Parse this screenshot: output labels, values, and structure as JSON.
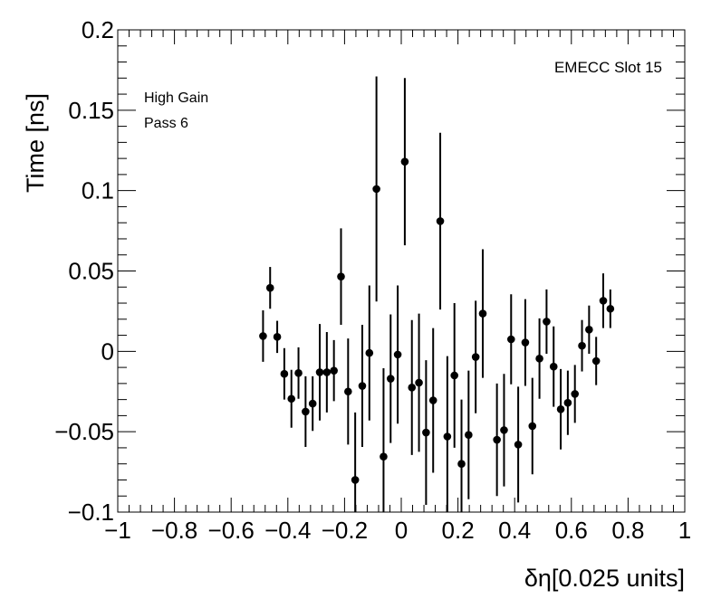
{
  "chart_data": {
    "type": "scatter",
    "title": "",
    "xlabel": "δη[0.025 units]",
    "ylabel": "Time [ns]",
    "xlim": [
      -1,
      1
    ],
    "ylim": [
      -0.1,
      0.2
    ],
    "x_ticks": [
      "−1",
      "−0.8",
      "−0.6",
      "−0.4",
      "−0.2",
      "0",
      "0.2",
      "0.4",
      "0.6",
      "0.8",
      "1"
    ],
    "y_ticks": [
      "−0.1",
      "−0.05",
      "0",
      "0.05",
      "0.1",
      "0.15",
      "0.2"
    ],
    "annotations": {
      "top_right": "EMECC Slot 15",
      "line1": "High Gain",
      "line2": "Pass 6"
    },
    "legend": "none",
    "grid": false,
    "marker_color": "#000000",
    "series": [
      {
        "points": [
          {
            "x": -0.4875,
            "y": 0.0095,
            "err": 0.016
          },
          {
            "x": -0.4625,
            "y": 0.0395,
            "err": 0.013
          },
          {
            "x": -0.4375,
            "y": 0.009,
            "err": 0.01
          },
          {
            "x": -0.4125,
            "y": -0.014,
            "err": 0.016
          },
          {
            "x": -0.3875,
            "y": -0.0295,
            "err": 0.018
          },
          {
            "x": -0.3625,
            "y": -0.0135,
            "err": 0.016
          },
          {
            "x": -0.3375,
            "y": -0.0375,
            "err": 0.022
          },
          {
            "x": -0.3125,
            "y": -0.0325,
            "err": 0.017
          },
          {
            "x": -0.2875,
            "y": -0.013,
            "err": 0.03
          },
          {
            "x": -0.2625,
            "y": -0.013,
            "err": 0.025
          },
          {
            "x": -0.2375,
            "y": -0.012,
            "err": 0.019
          },
          {
            "x": -0.2125,
            "y": 0.0465,
            "err": 0.03
          },
          {
            "x": -0.1875,
            "y": -0.025,
            "err": 0.033
          },
          {
            "x": -0.1625,
            "y": -0.08,
            "err": 0.042
          },
          {
            "x": -0.1375,
            "y": -0.0215,
            "err": 0.038
          },
          {
            "x": -0.1125,
            "y": -0.001,
            "err": 0.042
          },
          {
            "x": -0.0875,
            "y": 0.101,
            "err": 0.07
          },
          {
            "x": -0.0625,
            "y": -0.0655,
            "err": 0.055
          },
          {
            "x": -0.0375,
            "y": -0.017,
            "err": 0.04
          },
          {
            "x": -0.0125,
            "y": -0.002,
            "err": 0.043
          },
          {
            "x": 0.0125,
            "y": 0.118,
            "err": 0.052
          },
          {
            "x": 0.0375,
            "y": -0.0225,
            "err": 0.042
          },
          {
            "x": 0.0625,
            "y": -0.0195,
            "err": 0.043
          },
          {
            "x": 0.0875,
            "y": -0.0505,
            "err": 0.045
          },
          {
            "x": 0.1125,
            "y": -0.0305,
            "err": 0.045
          },
          {
            "x": 0.1375,
            "y": 0.081,
            "err": 0.055
          },
          {
            "x": 0.1625,
            "y": -0.053,
            "err": 0.05
          },
          {
            "x": 0.1875,
            "y": -0.015,
            "err": 0.045
          },
          {
            "x": 0.2125,
            "y": -0.07,
            "err": 0.04
          },
          {
            "x": 0.2375,
            "y": -0.052,
            "err": 0.04
          },
          {
            "x": 0.2625,
            "y": -0.0035,
            "err": 0.035
          },
          {
            "x": 0.2875,
            "y": 0.0235,
            "err": 0.04
          },
          {
            "x": 0.3375,
            "y": -0.055,
            "err": 0.035
          },
          {
            "x": 0.3625,
            "y": -0.049,
            "err": 0.035
          },
          {
            "x": 0.3875,
            "y": 0.0075,
            "err": 0.028
          },
          {
            "x": 0.4125,
            "y": -0.058,
            "err": 0.036
          },
          {
            "x": 0.4375,
            "y": 0.0055,
            "err": 0.027
          },
          {
            "x": 0.4625,
            "y": -0.0465,
            "err": 0.03
          },
          {
            "x": 0.4875,
            "y": -0.0045,
            "err": 0.025
          },
          {
            "x": 0.5125,
            "y": 0.0185,
            "err": 0.02
          },
          {
            "x": 0.5375,
            "y": -0.0095,
            "err": 0.025
          },
          {
            "x": 0.5625,
            "y": -0.036,
            "err": 0.025
          },
          {
            "x": 0.5875,
            "y": -0.032,
            "err": 0.02
          },
          {
            "x": 0.6125,
            "y": -0.0265,
            "err": 0.018
          },
          {
            "x": 0.6375,
            "y": 0.0035,
            "err": 0.016
          },
          {
            "x": 0.6625,
            "y": 0.0135,
            "err": 0.015
          },
          {
            "x": 0.6875,
            "y": -0.006,
            "err": 0.015
          },
          {
            "x": 0.7125,
            "y": 0.0315,
            "err": 0.017
          },
          {
            "x": 0.7375,
            "y": 0.0265,
            "err": 0.012
          }
        ]
      }
    ]
  }
}
